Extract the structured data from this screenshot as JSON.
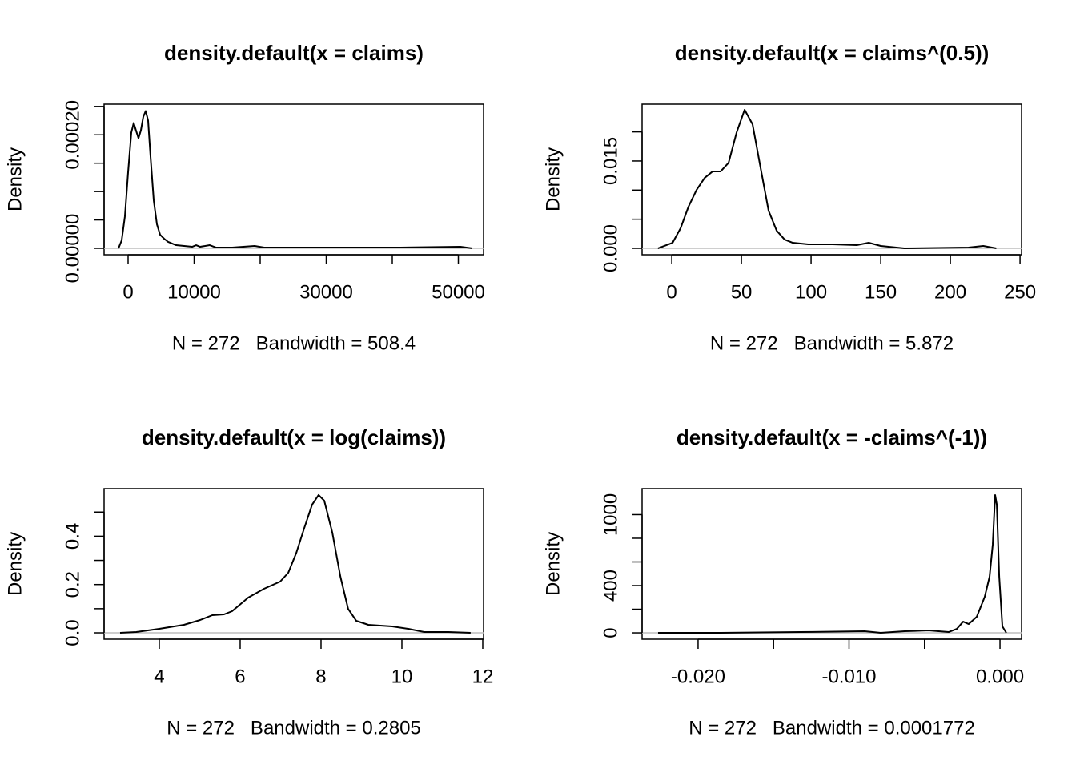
{
  "chart_data": [
    {
      "type": "line",
      "title": "density.default(x = claims)",
      "x_label": "N = 272   Bandwidth = 508.4",
      "y_label": "Density",
      "color": "#000000",
      "zero_line_color": "#bebebe",
      "x": [
        -1455,
        -970,
        -485,
        0,
        485,
        848,
        1212,
        1576,
        1939,
        2303,
        2667,
        3030,
        3394,
        3879,
        4364,
        4848,
        5455,
        6061,
        7273,
        9697,
        10303,
        10909,
        12364,
        13333,
        15758,
        19152,
        20606,
        41212,
        50303,
        52121
      ],
      "values": [
        0,
        1.41e-05,
        5.63e-05,
        0.000134,
        0.000204,
        0.000221,
        0.000207,
        0.000194,
        0.000208,
        0.000232,
        0.000242,
        0.000225,
        0.000162,
        8.45e-05,
        4.23e-05,
        2.39e-05,
        1.69e-05,
        1.13e-05,
        5.6e-06,
        2.8e-06,
        5.6e-06,
        2.8e-06,
        5.6e-06,
        1.4e-06,
        1.4e-06,
        4.2e-06,
        1.4e-06,
        1.4e-06,
        2.8e-06,
        0
      ],
      "xlim": [
        -3636,
        53818
      ],
      "ylim": [
        -1.13e-05,
        0.000254
      ],
      "xticks": [
        0,
        10000,
        {
          "value": 20000,
          "label": null
        },
        30000,
        {
          "value": 40000,
          "label": null
        },
        50000
      ],
      "yticks": [
        {
          "value": 0,
          "label": "0.00000"
        },
        {
          "value": 5e-05,
          "label": null
        },
        {
          "value": 0.0001,
          "label": null
        },
        {
          "value": 0.00015,
          "label": null
        },
        {
          "value": 0.0002,
          "label": "0.00020"
        },
        {
          "value": 0.00025,
          "label": null
        }
      ]
    },
    {
      "type": "line",
      "title": "density.default(x = claims^(0.5))",
      "x_label": "N = 272   Bandwidth = 5.872",
      "y_label": "Density",
      "color": "#000000",
      "zero_line_color": "#bebebe",
      "x": [
        -10,
        0.6,
        6.3,
        12,
        17.8,
        23.6,
        29.3,
        35,
        40.8,
        46.6,
        52.3,
        58,
        63.8,
        69.5,
        75.3,
        81,
        86.8,
        98,
        115.5,
        132.8,
        141.4,
        150,
        167,
        213,
        223.6,
        233
      ],
      "values": [
        0,
        0.00096,
        0.00344,
        0.00715,
        0.01004,
        0.0121,
        0.0132,
        0.0132,
        0.0147,
        0.01994,
        0.0238,
        0.0213,
        0.01376,
        0.00646,
        0.00303,
        0.00151,
        0.00096,
        0.00069,
        0.00069,
        0.00055,
        0.00096,
        0.00041,
        0,
        0.00014,
        0.00041,
        0
      ],
      "xlim": [
        -21.3,
        251.1
      ],
      "ylim": [
        -0.0011,
        0.02476
      ],
      "xticks": [
        0,
        50,
        100,
        150,
        200,
        250
      ],
      "yticks": [
        {
          "value": 0,
          "label": "0.000"
        },
        {
          "value": 0.005,
          "label": null
        },
        {
          "value": 0.01,
          "label": null
        },
        {
          "value": 0.015,
          "label": "0.015"
        },
        {
          "value": 0.02,
          "label": null
        }
      ]
    },
    {
      "type": "line",
      "title": "density.default(x = log(claims))",
      "x_label": "N = 272   Bandwidth = 0.2805",
      "y_label": "Density",
      "color": "#000000",
      "zero_line_color": "#bebebe",
      "x": [
        3.03,
        3.43,
        4,
        4.61,
        5.01,
        5.31,
        5.6,
        5.8,
        6.2,
        6.59,
        6.99,
        7.19,
        7.39,
        7.58,
        7.78,
        7.94,
        8.08,
        8.28,
        8.48,
        8.67,
        8.87,
        9.17,
        9.76,
        10.16,
        10.55,
        11.15,
        11.7
      ],
      "values": [
        0,
        0.0033,
        0.0166,
        0.0332,
        0.0531,
        0.073,
        0.0763,
        0.0896,
        0.1459,
        0.1824,
        0.2123,
        0.2488,
        0.3317,
        0.4312,
        0.5307,
        0.5705,
        0.5473,
        0.4146,
        0.2322,
        0.0995,
        0.0498,
        0.0332,
        0.0265,
        0.0166,
        0.0033,
        0.0033,
        0
      ],
      "xlim": [
        2.634,
        12.02
      ],
      "ylim": [
        -0.0265,
        0.597
      ],
      "xticks": [
        4,
        6,
        8,
        10,
        12
      ],
      "yticks": [
        {
          "value": 0,
          "label": "0.0"
        },
        {
          "value": 0.1,
          "label": null
        },
        0.2,
        {
          "value": 0.3,
          "label": null
        },
        0.4,
        {
          "value": 0.5,
          "label": null
        }
      ]
    },
    {
      "type": "line",
      "title": "density.default(x = -claims^(-1))",
      "x_label": "N = 272   Bandwidth = 0.0001772",
      "y_label": "Density",
      "color": "#000000",
      "zero_line_color": "#bebebe",
      "x": [
        -0.02265,
        -0.01851,
        -0.01321,
        -0.00897,
        -0.0079,
        -0.00631,
        -0.00472,
        -0.0034,
        -0.00286,
        -0.00244,
        -0.00207,
        -0.00154,
        -0.00101,
        -0.00069,
        -0.00048,
        -0.00032,
        -0.00021,
        -5e-05,
        0.00016,
        0.00042
      ],
      "values": [
        0,
        0,
        6.8,
        13.6,
        0,
        13.6,
        20.3,
        6.8,
        33.9,
        94.9,
        74.6,
        135.6,
        305,
        474.6,
        745.8,
        1166,
        1085,
        474.6,
        54.2,
        0
      ],
      "xlim": [
        -0.02371,
        0.00143
      ],
      "ylim": [
        -54,
        1220
      ],
      "xticks": [
        {
          "value": -0.02,
          "label": "-0.020"
        },
        {
          "value": -0.015,
          "label": null
        },
        {
          "value": -0.01,
          "label": "-0.010"
        },
        {
          "value": -0.005,
          "label": null
        },
        {
          "value": 0,
          "label": "0.000"
        }
      ],
      "yticks": [
        0,
        {
          "value": 200,
          "label": null
        },
        400,
        {
          "value": 600,
          "label": null
        },
        {
          "value": 800,
          "label": null
        },
        1000
      ]
    }
  ]
}
